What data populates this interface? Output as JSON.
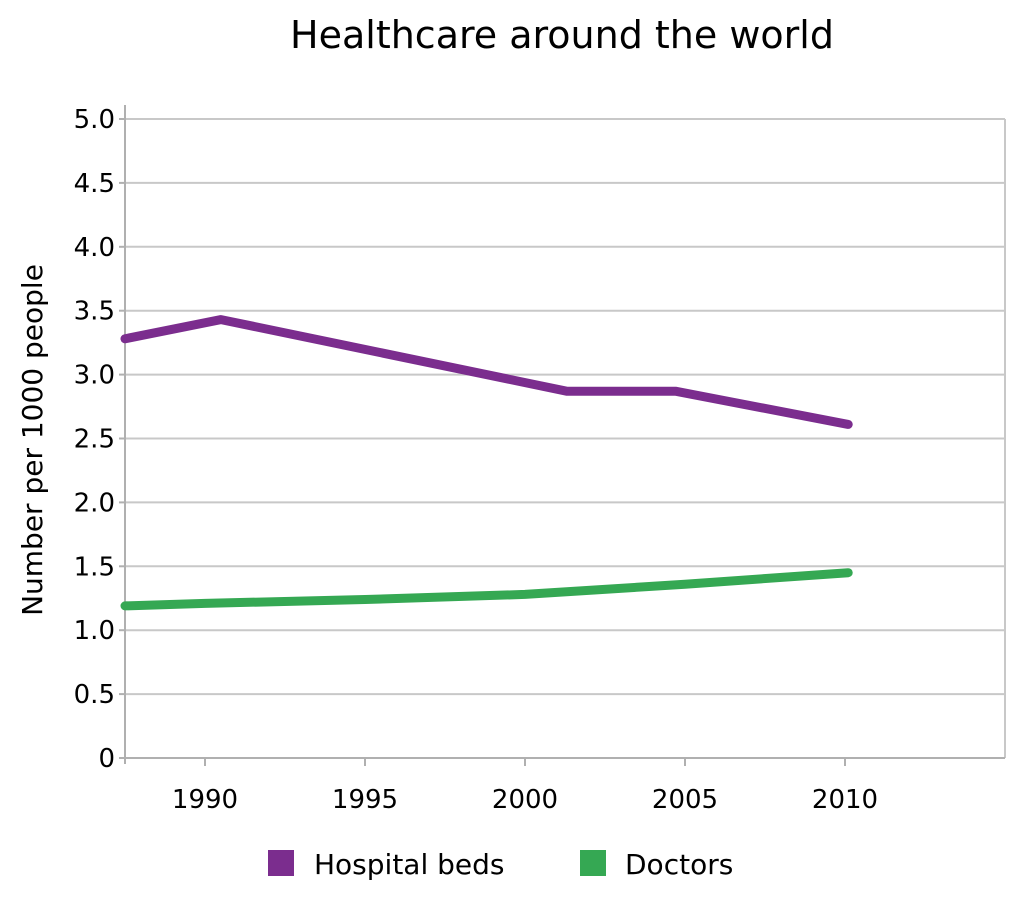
{
  "chart_data": {
    "type": "line",
    "title": "Healthcare around the world",
    "xlabel": "",
    "ylabel": "Number per 1000 people",
    "xlim": [
      1987.5,
      2015
    ],
    "ylim": [
      0,
      5.0
    ],
    "x_ticks": [
      "1990",
      "1995",
      "2000",
      "2005",
      "2010"
    ],
    "y_ticks": [
      "0",
      "0.5",
      "1.0",
      "1.5",
      "2.0",
      "2.5",
      "3.0",
      "3.5",
      "4.0",
      "4.5",
      "5.0"
    ],
    "grid": true,
    "legend_position": "bottom",
    "series": [
      {
        "name": "Hospital beds",
        "color": "#7b2d8e",
        "x": [
          1987.5,
          1990.5,
          2001.3,
          2004.7,
          2010.1
        ],
        "y": [
          3.28,
          3.43,
          2.87,
          2.87,
          2.61
        ]
      },
      {
        "name": "Doctors",
        "color": "#35a853",
        "x": [
          1987.5,
          1990.0,
          1995.0,
          2000.0,
          2005.0,
          2010.1
        ],
        "y": [
          1.19,
          1.21,
          1.24,
          1.28,
          1.36,
          1.45
        ]
      }
    ]
  }
}
